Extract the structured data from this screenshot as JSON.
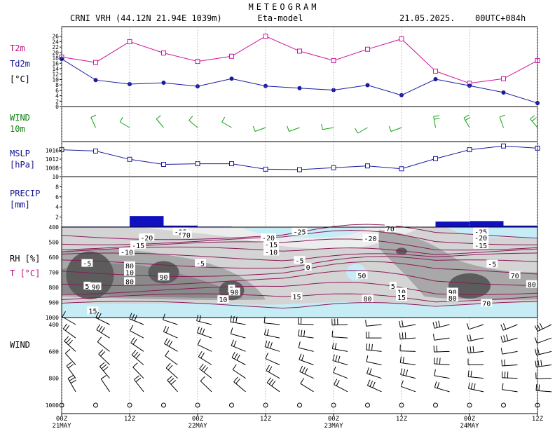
{
  "header": {
    "title": "METEOGRAM",
    "station": "CRNI VRH (44.12N 21.94E  1039m)",
    "model": "Eta-model",
    "date": "21.05.2025.",
    "run": "00UTC+084h"
  },
  "colors": {
    "t2m": "#d0109a",
    "td2m": "#1a1aa0",
    "wind10m": "#10a010",
    "mslp": "#1a1aa0",
    "precip": "#1010c0",
    "label_magenta": "#c0107a",
    "label_blue": "#101090",
    "label_green": "#108010"
  },
  "panels": {
    "temp": {
      "label_t2m": "T2m",
      "label_td2m": "Td2m",
      "unit": "[°C]"
    },
    "wind10": {
      "label": "WIND",
      "unit": "10m"
    },
    "mslp": {
      "label": "MSLP",
      "unit": "[hPa]"
    },
    "precip": {
      "label": "PRECIP",
      "unit": "[mm]"
    },
    "rh": {
      "label_rh": "RH [%]",
      "label_t": "T [°C]"
    },
    "windprof": {
      "label": "WIND"
    }
  },
  "xaxis": {
    "hours": [
      0,
      12,
      24,
      36,
      48,
      60,
      72,
      84
    ],
    "tick_labels": [
      "00Z",
      "12Z",
      "00Z",
      "12Z",
      "00Z",
      "12Z",
      "00Z",
      "12Z"
    ],
    "day_labels": [
      {
        "hour": 0,
        "label": "21MAY"
      },
      {
        "hour": 24,
        "label": "22MAY"
      },
      {
        "hour": 48,
        "label": "23MAY"
      },
      {
        "hour": 72,
        "label": "24MAY"
      }
    ]
  },
  "chart_data": [
    {
      "type": "line",
      "panel": "temperature",
      "x": [
        0,
        6,
        12,
        18,
        24,
        30,
        36,
        42,
        48,
        54,
        60,
        66,
        72,
        78,
        84
      ],
      "series": [
        {
          "name": "T2m",
          "values": [
            18.3,
            16.3,
            24.0,
            19.8,
            16.7,
            18.6,
            26.0,
            20.5,
            17.0,
            21.2,
            25.0,
            13.1,
            8.6,
            10.3,
            17.0
          ]
        },
        {
          "name": "Td2m",
          "values": [
            17.6,
            9.8,
            8.3,
            8.8,
            7.5,
            10.3,
            7.6,
            6.8,
            6.1,
            7.9,
            4.2,
            10.1,
            7.7,
            5.2,
            1.3
          ]
        }
      ],
      "ylim": [
        0,
        28
      ],
      "yticks": [
        0,
        2,
        4,
        6,
        8,
        10,
        12,
        14,
        16,
        18,
        20,
        22,
        24,
        26
      ]
    },
    {
      "type": "line",
      "panel": "wind10m",
      "x": [
        6,
        12,
        18,
        24,
        30,
        36,
        42,
        48,
        54,
        60,
        66,
        72,
        78,
        84
      ],
      "direction_deg": [
        335,
        300,
        320,
        310,
        300,
        250,
        250,
        260,
        240,
        250,
        350,
        330,
        340,
        320
      ],
      "speed_barbs": [
        1,
        1,
        1,
        1,
        1,
        1,
        1,
        1,
        1,
        1,
        2,
        2,
        1,
        2
      ]
    },
    {
      "type": "line",
      "panel": "mslp",
      "x": [
        0,
        6,
        12,
        18,
        24,
        30,
        36,
        42,
        48,
        54,
        60,
        66,
        72,
        78,
        84
      ],
      "series": [
        {
          "name": "MSLP",
          "values": [
            1016.3,
            1015.7,
            1011.9,
            1009.6,
            1009.9,
            1009.9,
            1007.4,
            1007.2,
            1008.1,
            1008.9,
            1007.6,
            1012.2,
            1016.3,
            1018.0,
            1017.0
          ]
        }
      ],
      "ylim": [
        1004,
        1020
      ],
      "yticks": [
        1008,
        1012,
        1016
      ]
    },
    {
      "type": "bar",
      "panel": "precip",
      "x_start": [
        0,
        6,
        12,
        18,
        24,
        30,
        36,
        42,
        48,
        54,
        60,
        66,
        72,
        78
      ],
      "values": [
        0.1,
        0.1,
        2.2,
        0.3,
        0.1,
        0.0,
        0.0,
        0.0,
        0.0,
        0.0,
        0.0,
        1.1,
        1.2,
        0.3
      ],
      "ylim": [
        0,
        10
      ],
      "yticks": [
        2,
        4,
        6,
        8,
        10
      ]
    },
    {
      "type": "heatmap",
      "panel": "rh_temperature_crosssection",
      "pressure_levels": [
        400,
        500,
        600,
        700,
        800,
        900,
        1000
      ],
      "temperature_labels": [
        {
          "value": "-25",
          "hour": 21,
          "p": 430
        },
        {
          "value": "-20",
          "hour": 15,
          "p": 470
        },
        {
          "value": "-15",
          "hour": 13.5,
          "p": 520
        },
        {
          "value": "-10",
          "hour": 11.5,
          "p": 565
        },
        {
          "value": "-5",
          "hour": 4.5,
          "p": 640
        },
        {
          "value": "-5",
          "hour": 24.5,
          "p": 640
        },
        {
          "value": "-25",
          "hour": 42,
          "p": 430
        },
        {
          "value": "-20",
          "hour": 36.5,
          "p": 470
        },
        {
          "value": "-15",
          "hour": 37,
          "p": 515
        },
        {
          "value": "-10",
          "hour": 37,
          "p": 565
        },
        {
          "value": "-5",
          "hour": 42,
          "p": 620
        },
        {
          "value": "0",
          "hour": 43.5,
          "p": 665
        },
        {
          "value": "-20",
          "hour": 54.5,
          "p": 475
        },
        {
          "value": "5",
          "hour": 58.5,
          "p": 790
        },
        {
          "value": "10",
          "hour": 60,
          "p": 830
        },
        {
          "value": "15",
          "hour": 60,
          "p": 865
        },
        {
          "value": "-25",
          "hour": 74,
          "p": 430
        },
        {
          "value": "-20",
          "hour": 74,
          "p": 470
        },
        {
          "value": "-15",
          "hour": 74,
          "p": 520
        },
        {
          "value": "-5",
          "hour": 76,
          "p": 645
        },
        {
          "value": "15",
          "hour": 41.5,
          "p": 860
        },
        {
          "value": "5",
          "hour": 30,
          "p": 810
        },
        {
          "value": "10",
          "hour": 28.5,
          "p": 880
        },
        {
          "value": "15",
          "hour": 5.5,
          "p": 955
        }
      ],
      "rh_labels": [
        {
          "value": "70",
          "hour": 22,
          "p": 450
        },
        {
          "value": "80",
          "hour": 12,
          "p": 655
        },
        {
          "value": "10",
          "hour": 12,
          "p": 700
        },
        {
          "value": "90",
          "hour": 18,
          "p": 730
        },
        {
          "value": "80",
          "hour": 12,
          "p": 760
        },
        {
          "value": "5",
          "hour": 4.5,
          "p": 790
        },
        {
          "value": "90",
          "hour": 6,
          "p": 795
        },
        {
          "value": "90",
          "hour": 30.5,
          "p": 830
        },
        {
          "value": "50",
          "hour": 53,
          "p": 720
        },
        {
          "value": "70",
          "hour": 58,
          "p": 410
        },
        {
          "value": "80",
          "hour": 54,
          "p": 875
        },
        {
          "value": "70",
          "hour": 80,
          "p": 720
        },
        {
          "value": "80",
          "hour": 83,
          "p": 780
        },
        {
          "value": "90",
          "hour": 69,
          "p": 830
        },
        {
          "value": "80",
          "hour": 69,
          "p": 870
        },
        {
          "value": "70",
          "hour": 75,
          "p": 905
        }
      ]
    },
    {
      "type": "scatter",
      "panel": "wind_profile",
      "pressure_levels": [
        400,
        500,
        600,
        700,
        800,
        900,
        1000
      ],
      "x": [
        0,
        6,
        12,
        18,
        24,
        30,
        36,
        42,
        48,
        54,
        60,
        66,
        72,
        78,
        84
      ]
    }
  ]
}
